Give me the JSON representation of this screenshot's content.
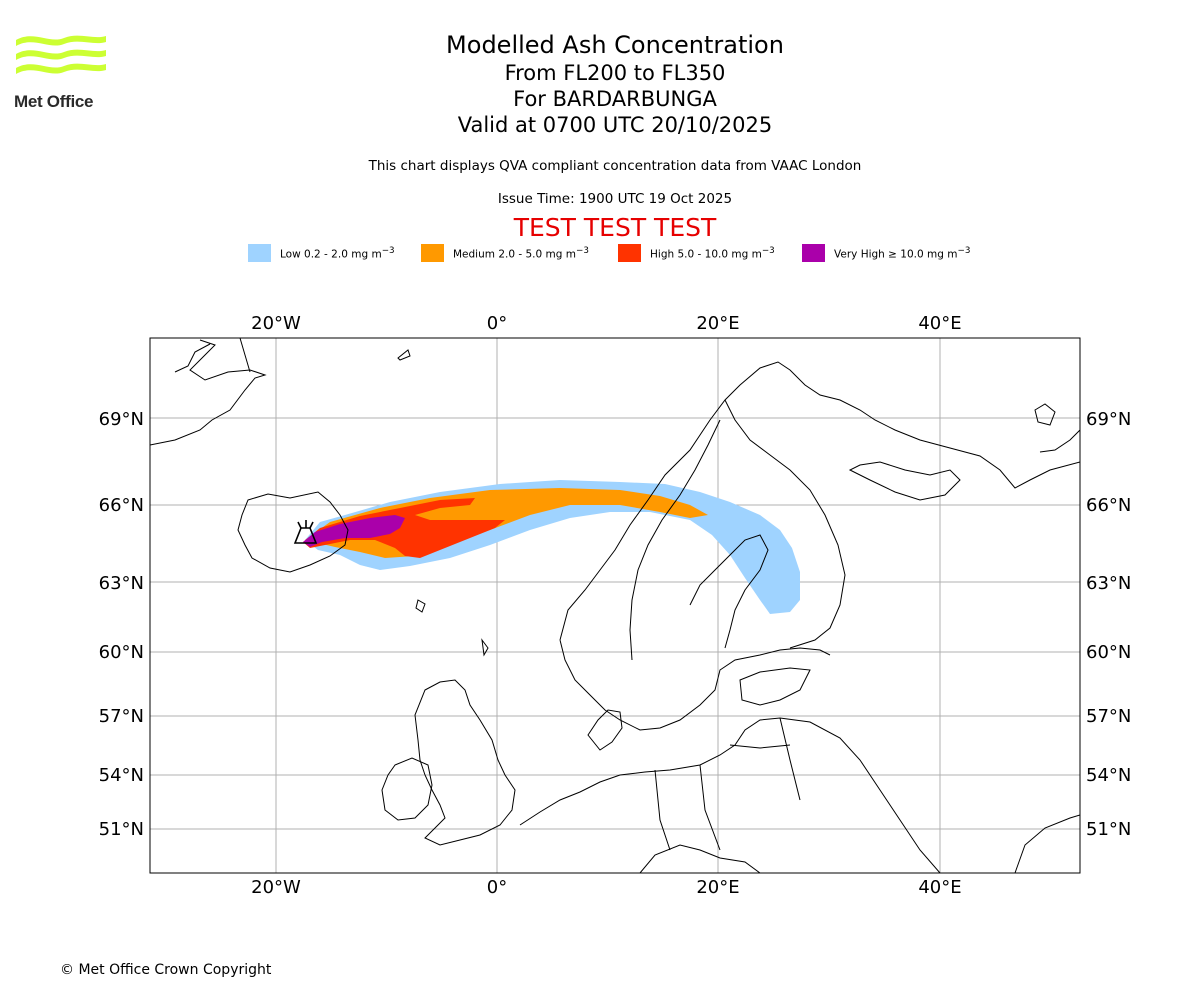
{
  "header": {
    "logo_text": "Met Office",
    "title": "Modelled Ash Concentration",
    "levels": "From FL200 to FL350",
    "volcano": "For BARDARBUNGA",
    "valid_time": "Valid at 0700 UTC 20/10/2025",
    "description": "This chart displays QVA compliant concentration data from VAAC London",
    "issue_time": "Issue Time: 1900 UTC 19 Oct 2025",
    "test_banner": "TEST TEST TEST"
  },
  "legend": [
    {
      "label": "Low 0.2 - 2.0 mg m",
      "color": "#9fd3ff"
    },
    {
      "label": "Medium 2.0 - 5.0 mg m",
      "color": "#ff9900"
    },
    {
      "label": "High 5.0 - 10.0 mg m",
      "color": "#ff3300"
    },
    {
      "label": "Very High ≥ 10.0 mg m",
      "color": "#aa00aa"
    }
  ],
  "legend_unit_sup": "−3",
  "axes": {
    "lon_ticks": [
      "20°W",
      "0°",
      "20°E",
      "40°E"
    ],
    "lat_ticks": [
      "69°N",
      "66°N",
      "63°N",
      "60°N",
      "57°N",
      "54°N",
      "51°N"
    ]
  },
  "colors": {
    "logo_green": "#ccff33",
    "grid": "#b0b0b0",
    "test_red": "#e60000"
  },
  "footer": {
    "copyright": "© Met Office Crown Copyright"
  }
}
